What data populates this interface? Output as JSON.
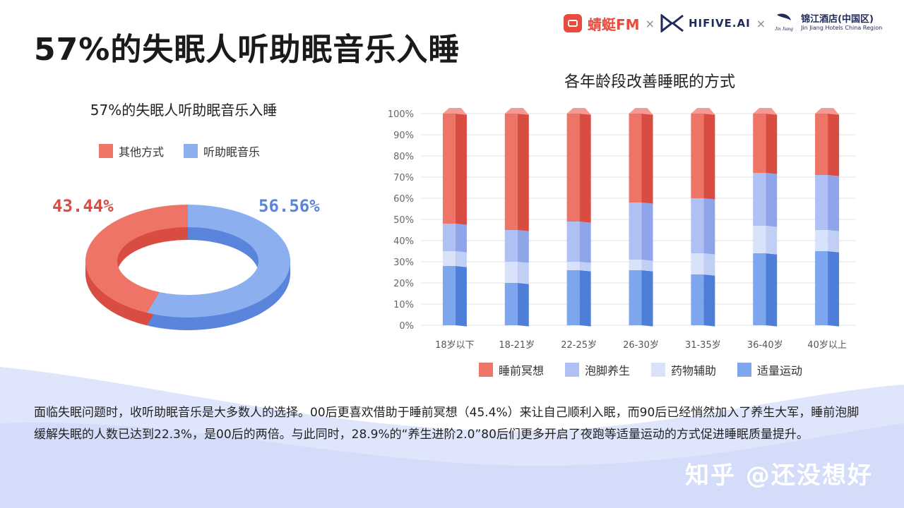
{
  "page_title": "57%的失眠人听助眠音乐入睡",
  "logos": {
    "qingting": "蜻蜓FM",
    "separator": "×",
    "hifive": "HIFIVE.AI",
    "jinjiang_cn": "锦江酒店(中国区)",
    "jinjiang_en": "Jin Jiang Hotels China Region",
    "jinjiang_mark": "Jin Jiang Hotels"
  },
  "chart_data": [
    {
      "type": "pie",
      "title": "57%的失眠人听助眠音乐入睡",
      "slices": [
        {
          "name": "其他方式",
          "value": 43.44,
          "label": "43.44%",
          "color": "#ef7468",
          "side_color": "#d94c42"
        },
        {
          "name": "听助眠音乐",
          "value": 56.56,
          "label": "56.56%",
          "color": "#8cb0ef",
          "side_color": "#5b84dc"
        }
      ],
      "legend_position": "top"
    },
    {
      "type": "bar",
      "stacked": true,
      "title": "各年龄段改善睡眠的方式",
      "categories": [
        "18岁以下",
        "18-21岁",
        "22-25岁",
        "26-30岁",
        "31-35岁",
        "36-40岁",
        "40岁以上"
      ],
      "series": [
        {
          "name": "适量运动",
          "color": "#7ea6ef",
          "side_color": "#4d7fd9",
          "values": [
            28,
            20,
            26,
            26,
            24,
            34,
            35
          ]
        },
        {
          "name": "药物辅助",
          "color": "#d9e2fb",
          "side_color": "#c2cff5",
          "values": [
            7,
            10,
            4,
            5,
            10,
            13,
            10
          ]
        },
        {
          "name": "泡脚养生",
          "color": "#afc0f4",
          "side_color": "#8fa5ea",
          "values": [
            13,
            15,
            19,
            27,
            26,
            25,
            26
          ]
        },
        {
          "name": "睡前冥想",
          "color": "#ef7468",
          "side_color": "#d94c42",
          "values": [
            52,
            55,
            51,
            42,
            40,
            28,
            29
          ]
        }
      ],
      "y_ticks": [
        "0%",
        "10%",
        "20%",
        "30%",
        "40%",
        "50%",
        "60%",
        "70%",
        "80%",
        "90%",
        "100%"
      ],
      "ylim": [
        0,
        100
      ],
      "grid": true,
      "legend_position": "bottom"
    }
  ],
  "description": "面临失眠问题时，收听助眠音乐是大多数人的选择。00后更喜欢借助于睡前冥想（45.4%）来让自己顺利入眠，而90后已经悄然加入了养生大军，睡前泡脚缓解失眠的人数已达到22.3%，是00后的两倍。与此同时，28.9%的“养生进阶2.0”80后们更多开启了夜跑等适量运动的方式促进睡眠质量提升。",
  "watermark": "知乎 @还没想好"
}
